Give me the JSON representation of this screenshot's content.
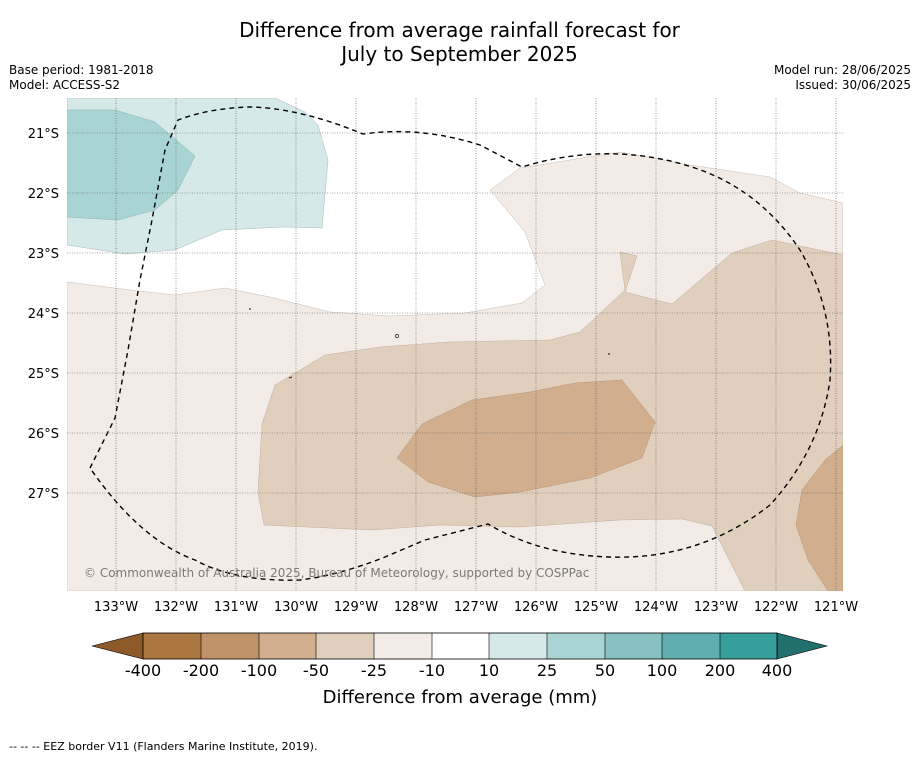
{
  "title": {
    "line1": "Difference from average rainfall forecast for",
    "line2": "July to September 2025"
  },
  "meta": {
    "base_period": "Base period: 1981-2018",
    "model": "Model: ACCESS-S2",
    "model_run": "Model run: 28/06/2025",
    "issued": "Issued: 30/06/2025"
  },
  "map": {
    "lon_labels": [
      "133°W",
      "132°W",
      "131°W",
      "130°W",
      "129°W",
      "128°W",
      "127°W",
      "126°W",
      "125°W",
      "124°W",
      "123°W",
      "122°W",
      "121°W"
    ],
    "lat_labels": [
      "21°S",
      "22°S",
      "23°S",
      "24°S",
      "25°S",
      "26°S",
      "27°S"
    ],
    "copyright": "© Commonwealth of Australia 2025, Bureau of Meteorology, supported by COSPPac",
    "grid": true,
    "eez_border_shown": true
  },
  "colorbar": {
    "labels": [
      "-400",
      "-200",
      "-100",
      "-50",
      "-25",
      "-10",
      "10",
      "25",
      "50",
      "100",
      "200",
      "400"
    ],
    "colors": [
      "#ab7640",
      "#bf9268",
      "#d0ae8e",
      "#e1cfbd",
      "#f3ece6",
      "#ffffff",
      "#d4e9e8",
      "#a8d4d3",
      "#85c2c1",
      "#5fadac",
      "#359e9b"
    ],
    "under_color": "#8e5a2a",
    "over_color": "#22706e",
    "title": "Difference from average (mm)"
  },
  "footnote": "--  --  -- EEZ border V11 (Flanders Marine Institute, 2019)."
}
